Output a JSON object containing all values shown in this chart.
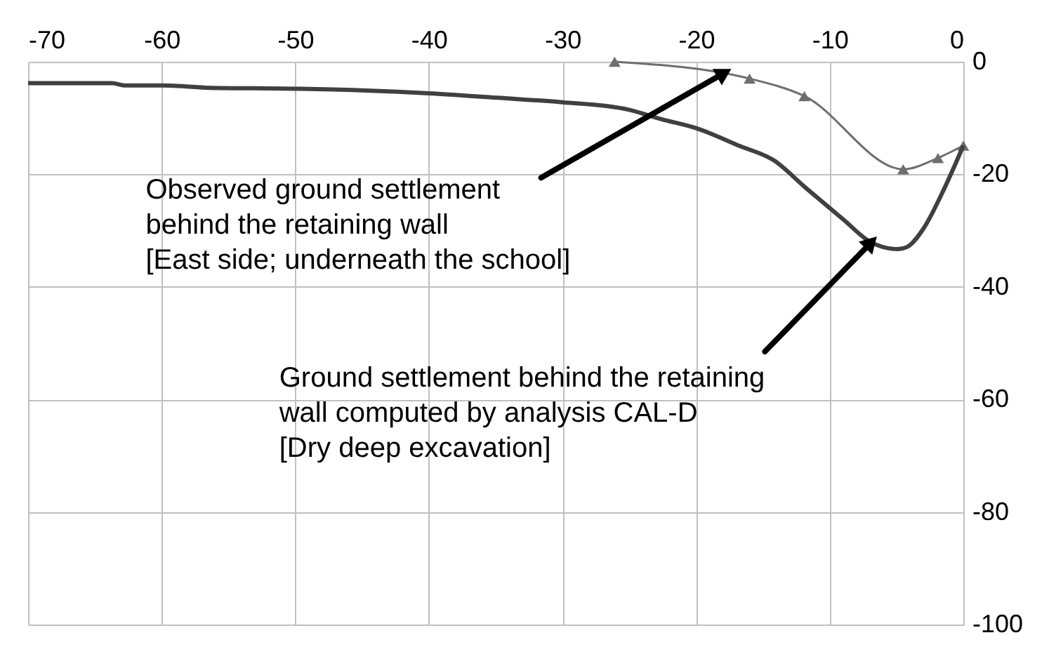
{
  "chart_data": {
    "type": "line",
    "xlim": [
      -70,
      0
    ],
    "xticks": [
      -70,
      -60,
      -50,
      -40,
      -30,
      -20,
      -10,
      0
    ],
    "ylim": [
      -100,
      0
    ],
    "yticks": [
      -100,
      -80,
      -60,
      -40,
      -20,
      0
    ],
    "grid": true,
    "series": [
      {
        "color": "#6e6e6e",
        "marker": "triangle",
        "x": [
          -26.1,
          -16,
          -11.9,
          -4.5,
          -1.9,
          0
        ],
        "values": [
          0,
          -3,
          -6.1,
          -19.1,
          -17.1,
          -14.9
        ]
      },
      {
        "color": "#404040",
        "marker": "none",
        "x": [
          -70,
          -63.7,
          -62.8,
          -60,
          -56.7,
          -50,
          -44.7,
          -40,
          -34.9,
          -30,
          -25.1,
          -22.6,
          -20,
          -16.7,
          -14.2,
          -11.8,
          -9,
          -6.9,
          -4.9,
          -4.2,
          -3,
          -1.4,
          0
        ],
        "values": [
          -3.8,
          -3.8,
          -4.2,
          -4.2,
          -4.6,
          -4.8,
          -5.1,
          -5.6,
          -6.4,
          -7.2,
          -8.5,
          -10.2,
          -11.8,
          -15,
          -17.5,
          -22.4,
          -28,
          -32.1,
          -33.3,
          -32.9,
          -29.7,
          -22.4,
          -14.9
        ]
      }
    ],
    "annotations": [
      {
        "text": "Observed ground settlement\nbehind the retaining wall\n[East side; underneath the school]",
        "x": -17.9,
        "y": -2
      },
      {
        "text": "Ground settlement behind the retaining\nwall computed by analysis CAL-D\n[Dry deep excavation]",
        "x": -6.9,
        "y": -32.1
      }
    ]
  }
}
